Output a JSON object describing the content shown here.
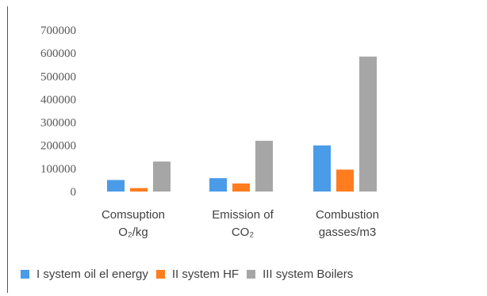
{
  "chart_data": {
    "type": "bar",
    "categories": [
      "Comsuption O₂/kg",
      "Emission of CO₂",
      "Combustion gasses/m3"
    ],
    "category_lines": [
      [
        "Comsuption",
        "O₂/kg"
      ],
      [
        "Emission of",
        "CO₂"
      ],
      [
        "Combustion",
        "gasses/m3"
      ]
    ],
    "series": [
      {
        "name": "I system oil el energy",
        "color": "#4a9be8",
        "values": [
          50000,
          58000,
          200000
        ]
      },
      {
        "name": "II system HF",
        "color": "#ff7d1f",
        "values": [
          15000,
          35000,
          95000
        ]
      },
      {
        "name": "III system Boilers",
        "color": "#a6a6a6",
        "values": [
          130000,
          220000,
          585000
        ]
      }
    ],
    "ylim": [
      0,
      700000
    ],
    "yticks": [
      "0",
      "100000",
      "200000",
      "300000",
      "400000",
      "500000",
      "600000",
      "700000"
    ],
    "grid": false,
    "legend_position": "bottom",
    "title": "",
    "xlabel": "",
    "ylabel": ""
  }
}
